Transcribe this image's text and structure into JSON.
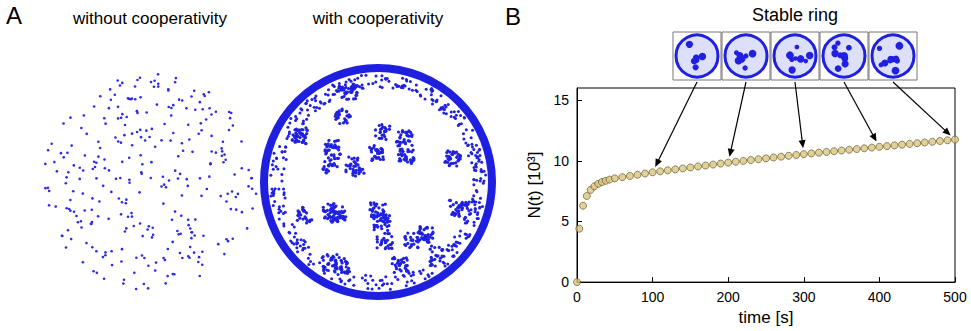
{
  "panel_labels": [
    "A",
    "B"
  ],
  "panel_a": {
    "titles": [
      "without cooperativity",
      "with cooperativity"
    ]
  },
  "chart_data": {
    "type": "scatter",
    "title": "Stable ring",
    "x": [
      0,
      3,
      8,
      13,
      18,
      23,
      28,
      33,
      38,
      43,
      50,
      60,
      70,
      80,
      90,
      100,
      110,
      120,
      130,
      140,
      150,
      160,
      170,
      180,
      190,
      200,
      210,
      220,
      230,
      240,
      250,
      260,
      270,
      280,
      290,
      300,
      310,
      320,
      330,
      340,
      350,
      360,
      370,
      380,
      390,
      400,
      410,
      420,
      430,
      440,
      450,
      460,
      470,
      480,
      490,
      500
    ],
    "values": [
      0,
      4.4,
      6.3,
      7.1,
      7.6,
      7.9,
      8.1,
      8.25,
      8.35,
      8.45,
      8.55,
      8.65,
      8.75,
      8.85,
      8.95,
      9.05,
      9.13,
      9.21,
      9.29,
      9.37,
      9.45,
      9.53,
      9.61,
      9.69,
      9.77,
      9.85,
      9.92,
      9.99,
      10.06,
      10.13,
      10.2,
      10.27,
      10.34,
      10.41,
      10.48,
      10.55,
      10.61,
      10.67,
      10.73,
      10.79,
      10.85,
      10.91,
      10.97,
      11.03,
      11.09,
      11.15,
      11.21,
      11.27,
      11.33,
      11.39,
      11.45,
      11.51,
      11.57,
      11.63,
      11.69,
      11.75
    ],
    "color": "#d9c47e",
    "marker": "o",
    "xlabel": "time [s]",
    "ylabel": "N(t) [10³]",
    "xlim": [
      0,
      500
    ],
    "ylim": [
      0,
      16
    ],
    "xticks": [
      0,
      100,
      200,
      300,
      400,
      500
    ],
    "yticks": [
      0,
      5,
      10,
      15
    ],
    "grid": false,
    "snapshot_times": [
      100,
      200,
      300,
      400,
      500
    ]
  }
}
